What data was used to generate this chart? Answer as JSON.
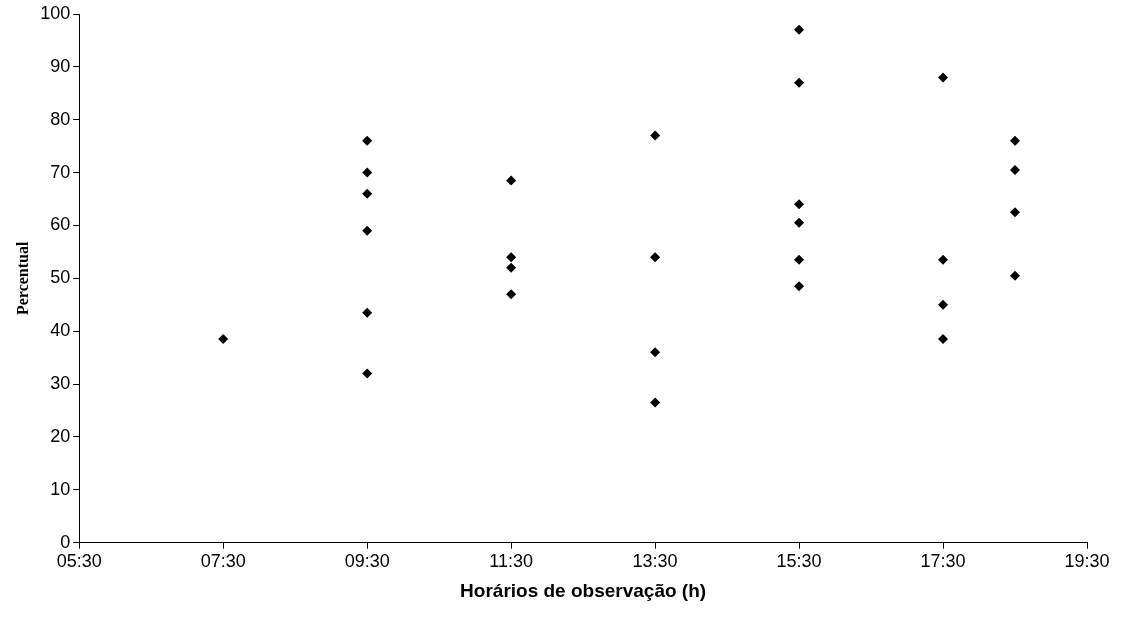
{
  "chart_data": {
    "type": "scatter",
    "xlabel": "Horários de observação (h)",
    "ylabel": "Percentual",
    "x": [
      7.5,
      9.5,
      9.5,
      9.5,
      9.5,
      9.5,
      9.5,
      11.5,
      11.5,
      11.5,
      11.5,
      13.5,
      13.5,
      13.5,
      13.5,
      15.5,
      15.5,
      15.5,
      15.5,
      15.5,
      15.5,
      17.5,
      17.5,
      17.5,
      17.5,
      18.5,
      18.5,
      18.5,
      18.5
    ],
    "values": [
      38.5,
      76,
      70,
      66,
      59,
      43.5,
      32,
      68.5,
      54,
      52,
      47,
      77,
      54,
      36,
      26.5,
      97,
      87,
      64,
      60.5,
      53.5,
      48.5,
      88,
      53.5,
      45,
      38.5,
      76,
      70.5,
      62.5,
      50.5
    ],
    "color": "#000000",
    "marker": "diamond",
    "grid": false,
    "legend": false,
    "xlim": [
      5.5,
      19.5
    ],
    "xticks": [
      {
        "value": 5.5,
        "label": "05:30"
      },
      {
        "value": 7.5,
        "label": "07:30"
      },
      {
        "value": 9.5,
        "label": "09:30"
      },
      {
        "value": 11.5,
        "label": "11:30"
      },
      {
        "value": 13.5,
        "label": "13:30"
      },
      {
        "value": 15.5,
        "label": "15:30"
      },
      {
        "value": 17.5,
        "label": "17:30"
      },
      {
        "value": 19.5,
        "label": "19:30"
      }
    ],
    "ylim": [
      0,
      100
    ],
    "yticks": [
      0,
      10,
      20,
      30,
      40,
      50,
      60,
      70,
      80,
      90,
      100
    ]
  }
}
